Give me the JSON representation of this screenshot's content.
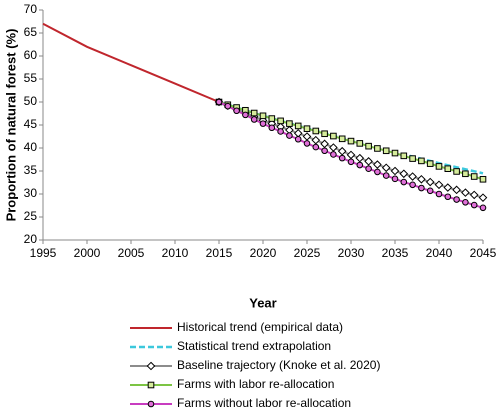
{
  "chart_data": {
    "type": "line",
    "x_label": "Year",
    "y_label": "Proportion of natural forest (%)",
    "xlim": [
      1995,
      2045
    ],
    "xticks": [
      1995,
      2000,
      2005,
      2010,
      2015,
      2020,
      2025,
      2030,
      2035,
      2040,
      2045
    ],
    "ylim": [
      20,
      70
    ],
    "yticks": [
      20,
      25,
      30,
      35,
      40,
      45,
      50,
      55,
      60,
      65,
      70
    ],
    "grid": false,
    "legend": "bottom",
    "series": [
      {
        "name": "Historical trend (empirical data)",
        "color": "#c0262d",
        "dash": false,
        "marker": null,
        "x": [
          1995,
          2000,
          2005,
          2010,
          2015
        ],
        "values": [
          67,
          62,
          58,
          54,
          50
        ]
      },
      {
        "name": "Statistical trend extrapolation",
        "color": "#3cc8dc",
        "dash": true,
        "marker": null,
        "x": [
          2015,
          2020,
          2025,
          2030,
          2035,
          2040,
          2045
        ],
        "values": [
          50,
          47,
          44.3,
          41.6,
          39.1,
          36.7,
          34.5
        ]
      },
      {
        "name": "Baseline trajectory (Knoke et al. 2020)",
        "color": "#8c8c8c",
        "dash": false,
        "marker": "diamond",
        "marker_fill": "#ffffff",
        "x": [
          2015,
          2016,
          2017,
          2018,
          2019,
          2020,
          2021,
          2022,
          2023,
          2024,
          2025,
          2026,
          2027,
          2028,
          2029,
          2030,
          2031,
          2032,
          2033,
          2034,
          2035,
          2036,
          2037,
          2038,
          2039,
          2040,
          2041,
          2042,
          2043,
          2044,
          2045
        ],
        "values": [
          50,
          49.2,
          48.4,
          47.6,
          46.8,
          46.0,
          45.3,
          44.6,
          43.9,
          43.2,
          42.5,
          41.7,
          40.9,
          40.1,
          39.3,
          38.5,
          37.8,
          37.1,
          36.4,
          35.7,
          35.0,
          34.4,
          33.8,
          33.2,
          32.6,
          32.0,
          31.4,
          30.9,
          30.3,
          29.8,
          29.2
        ]
      },
      {
        "name": "Farms with labor re-allocation",
        "color": "#7cc444",
        "dash": false,
        "marker": "square",
        "marker_fill": "#d6ec9c",
        "x": [
          2015,
          2016,
          2017,
          2018,
          2019,
          2020,
          2021,
          2022,
          2023,
          2024,
          2025,
          2026,
          2027,
          2028,
          2029,
          2030,
          2031,
          2032,
          2033,
          2034,
          2035,
          2036,
          2037,
          2038,
          2039,
          2040,
          2041,
          2042,
          2043,
          2044,
          2045
        ],
        "values": [
          50,
          49.4,
          48.8,
          48.2,
          47.6,
          47.0,
          46.4,
          45.9,
          45.3,
          44.8,
          44.2,
          43.7,
          43.1,
          42.6,
          42.0,
          41.5,
          41.0,
          40.4,
          39.9,
          39.4,
          38.9,
          38.3,
          37.7,
          37.2,
          36.6,
          36.0,
          35.5,
          34.9,
          34.4,
          33.8,
          33.2
        ]
      },
      {
        "name": "Farms without labor re-allocation",
        "color": "#c83cc0",
        "dash": false,
        "marker": "circle",
        "marker_fill": "#e070d8",
        "x": [
          2015,
          2016,
          2017,
          2018,
          2019,
          2020,
          2021,
          2022,
          2023,
          2024,
          2025,
          2026,
          2027,
          2028,
          2029,
          2030,
          2031,
          2032,
          2033,
          2034,
          2035,
          2036,
          2037,
          2038,
          2039,
          2040,
          2041,
          2042,
          2043,
          2044,
          2045
        ],
        "values": [
          50,
          49.1,
          48.1,
          47.2,
          46.2,
          45.3,
          44.4,
          43.6,
          42.7,
          41.9,
          41.0,
          40.2,
          39.4,
          38.6,
          37.8,
          37.0,
          36.3,
          35.5,
          34.8,
          34.0,
          33.3,
          32.6,
          32.0,
          31.3,
          30.7,
          30.0,
          29.4,
          28.8,
          28.2,
          27.6,
          27.0
        ]
      }
    ]
  }
}
